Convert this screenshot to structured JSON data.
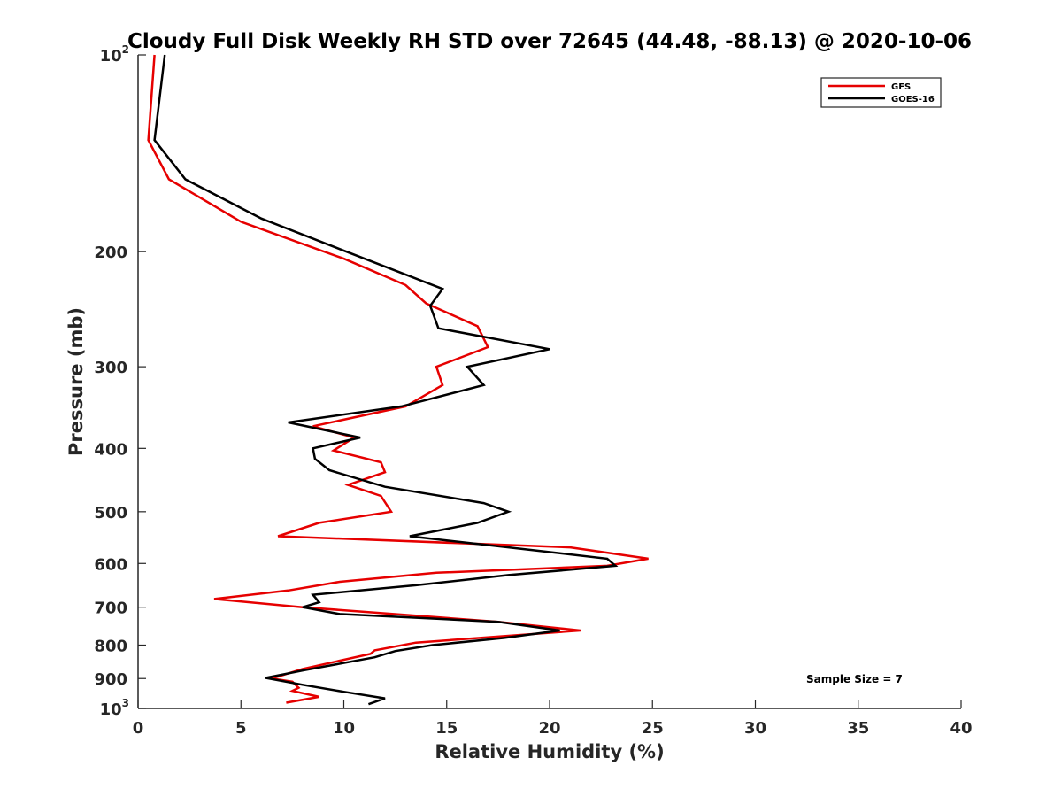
{
  "chart_data": {
    "type": "line",
    "title": "Cloudy Full Disk Weekly RH STD over 72645 (44.48, -88.13) @ 2020-10-06",
    "xlabel": "Relative Humidity (%)",
    "ylabel": "Pressure (mb)",
    "xlim": [
      0,
      40
    ],
    "ylim": [
      100,
      1000
    ],
    "yscale": "log",
    "y_reversed": true,
    "grid": false,
    "legend_position": "top-right",
    "x_ticks": [
      "0",
      "5",
      "10",
      "15",
      "20",
      "25",
      "30",
      "35",
      "40"
    ],
    "x_tick_values": [
      0,
      5,
      10,
      15,
      20,
      25,
      30,
      35,
      40
    ],
    "y_ticks": [
      {
        "value": 100,
        "base": "10",
        "exp": "2"
      },
      {
        "value": 200,
        "label": "200"
      },
      {
        "value": 300,
        "label": "300"
      },
      {
        "value": 400,
        "label": "400"
      },
      {
        "value": 500,
        "label": "500"
      },
      {
        "value": 600,
        "label": "600"
      },
      {
        "value": 700,
        "label": "700"
      },
      {
        "value": 800,
        "label": "800"
      },
      {
        "value": 900,
        "label": "900"
      },
      {
        "value": 1000,
        "base": "10",
        "exp": "3"
      }
    ],
    "annotation": "Sample Size = 7",
    "series": [
      {
        "name": "GFS",
        "color": "#e60000",
        "points": [
          {
            "x": 0.8,
            "y": 100
          },
          {
            "x": 0.5,
            "y": 135
          },
          {
            "x": 1.5,
            "y": 155
          },
          {
            "x": 5.0,
            "y": 180
          },
          {
            "x": 10.0,
            "y": 205
          },
          {
            "x": 13.0,
            "y": 225
          },
          {
            "x": 14.0,
            "y": 240
          },
          {
            "x": 16.5,
            "y": 260
          },
          {
            "x": 17.0,
            "y": 280
          },
          {
            "x": 14.5,
            "y": 300
          },
          {
            "x": 14.8,
            "y": 320
          },
          {
            "x": 13.0,
            "y": 345
          },
          {
            "x": 8.5,
            "y": 370
          },
          {
            "x": 10.5,
            "y": 385
          },
          {
            "x": 9.5,
            "y": 403
          },
          {
            "x": 11.8,
            "y": 420
          },
          {
            "x": 12.0,
            "y": 435
          },
          {
            "x": 10.2,
            "y": 455
          },
          {
            "x": 11.8,
            "y": 473
          },
          {
            "x": 12.3,
            "y": 500
          },
          {
            "x": 8.8,
            "y": 520
          },
          {
            "x": 6.8,
            "y": 545
          },
          {
            "x": 21.0,
            "y": 567
          },
          {
            "x": 24.8,
            "y": 590
          },
          {
            "x": 22.8,
            "y": 605
          },
          {
            "x": 14.5,
            "y": 620
          },
          {
            "x": 9.8,
            "y": 640
          },
          {
            "x": 7.3,
            "y": 660
          },
          {
            "x": 3.7,
            "y": 680
          },
          {
            "x": 8.0,
            "y": 700
          },
          {
            "x": 17.5,
            "y": 737
          },
          {
            "x": 21.5,
            "y": 760
          },
          {
            "x": 13.5,
            "y": 793
          },
          {
            "x": 11.5,
            "y": 815
          },
          {
            "x": 11.3,
            "y": 825
          },
          {
            "x": 8.0,
            "y": 870
          },
          {
            "x": 6.5,
            "y": 900
          },
          {
            "x": 7.5,
            "y": 910
          },
          {
            "x": 7.8,
            "y": 930
          },
          {
            "x": 7.5,
            "y": 940
          },
          {
            "x": 8.8,
            "y": 960
          },
          {
            "x": 7.2,
            "y": 980
          }
        ]
      },
      {
        "name": "GOES-16",
        "color": "#000000",
        "points": [
          {
            "x": 1.3,
            "y": 100
          },
          {
            "x": 0.8,
            "y": 135
          },
          {
            "x": 2.3,
            "y": 155
          },
          {
            "x": 6.0,
            "y": 178
          },
          {
            "x": 11.0,
            "y": 205
          },
          {
            "x": 14.8,
            "y": 228
          },
          {
            "x": 14.2,
            "y": 242
          },
          {
            "x": 14.6,
            "y": 262
          },
          {
            "x": 20.0,
            "y": 282
          },
          {
            "x": 16.0,
            "y": 300
          },
          {
            "x": 16.8,
            "y": 320
          },
          {
            "x": 12.8,
            "y": 345
          },
          {
            "x": 7.3,
            "y": 365
          },
          {
            "x": 10.8,
            "y": 385
          },
          {
            "x": 8.5,
            "y": 400
          },
          {
            "x": 8.6,
            "y": 415
          },
          {
            "x": 9.3,
            "y": 432
          },
          {
            "x": 12.0,
            "y": 458
          },
          {
            "x": 16.8,
            "y": 485
          },
          {
            "x": 18.0,
            "y": 500
          },
          {
            "x": 16.5,
            "y": 520
          },
          {
            "x": 13.2,
            "y": 545
          },
          {
            "x": 18.0,
            "y": 567
          },
          {
            "x": 22.8,
            "y": 590
          },
          {
            "x": 23.2,
            "y": 605
          },
          {
            "x": 18.0,
            "y": 625
          },
          {
            "x": 13.5,
            "y": 648
          },
          {
            "x": 8.5,
            "y": 670
          },
          {
            "x": 8.8,
            "y": 688
          },
          {
            "x": 8.0,
            "y": 700
          },
          {
            "x": 9.8,
            "y": 717
          },
          {
            "x": 17.5,
            "y": 737
          },
          {
            "x": 20.5,
            "y": 760
          },
          {
            "x": 17.8,
            "y": 780
          },
          {
            "x": 14.3,
            "y": 800
          },
          {
            "x": 12.5,
            "y": 817
          },
          {
            "x": 11.5,
            "y": 835
          },
          {
            "x": 8.0,
            "y": 875
          },
          {
            "x": 6.2,
            "y": 898
          },
          {
            "x": 8.0,
            "y": 920
          },
          {
            "x": 10.0,
            "y": 943
          },
          {
            "x": 12.0,
            "y": 965
          },
          {
            "x": 11.2,
            "y": 985
          }
        ]
      }
    ]
  }
}
